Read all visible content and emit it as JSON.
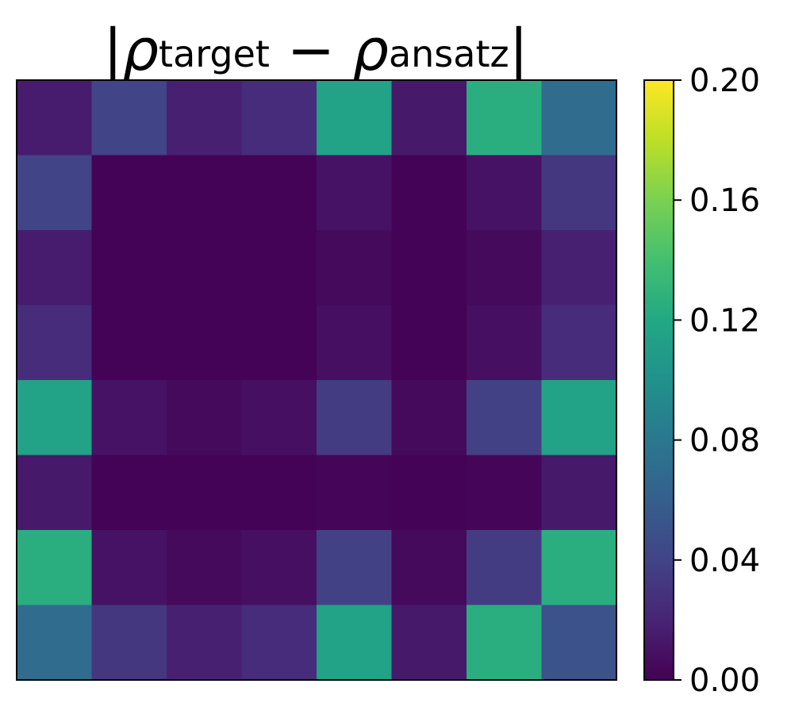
{
  "chart_data": {
    "type": "heatmap",
    "title": {
      "bar_left": "|",
      "rho_1": "ρ",
      "sub_1": "target",
      "minus": "−",
      "rho_2": "ρ",
      "sub_2": "ansatz",
      "bar_right": "|"
    },
    "rows": 8,
    "cols": 8,
    "values": [
      [
        0.015,
        0.04,
        0.018,
        0.025,
        0.115,
        0.014,
        0.125,
        0.07
      ],
      [
        0.04,
        0.001,
        0.001,
        0.001,
        0.01,
        0.001,
        0.01,
        0.032
      ],
      [
        0.015,
        0.001,
        0.001,
        0.001,
        0.005,
        0.001,
        0.005,
        0.018
      ],
      [
        0.025,
        0.001,
        0.001,
        0.001,
        0.008,
        0.001,
        0.008,
        0.025
      ],
      [
        0.115,
        0.01,
        0.005,
        0.008,
        0.035,
        0.005,
        0.038,
        0.115
      ],
      [
        0.014,
        0.001,
        0.001,
        0.001,
        0.003,
        0.001,
        0.003,
        0.014
      ],
      [
        0.125,
        0.01,
        0.005,
        0.008,
        0.038,
        0.005,
        0.035,
        0.125
      ],
      [
        0.07,
        0.032,
        0.018,
        0.025,
        0.115,
        0.014,
        0.125,
        0.05
      ]
    ],
    "colormap": "viridis",
    "colorbar": {
      "min": 0.0,
      "max": 0.2,
      "ticks": [
        0.0,
        0.04,
        0.08,
        0.12,
        0.16,
        0.2
      ],
      "tick_labels": [
        "0.00",
        "0.04",
        "0.08",
        "0.12",
        "0.16",
        "0.20"
      ]
    },
    "axes_ticks_visible": false
  }
}
